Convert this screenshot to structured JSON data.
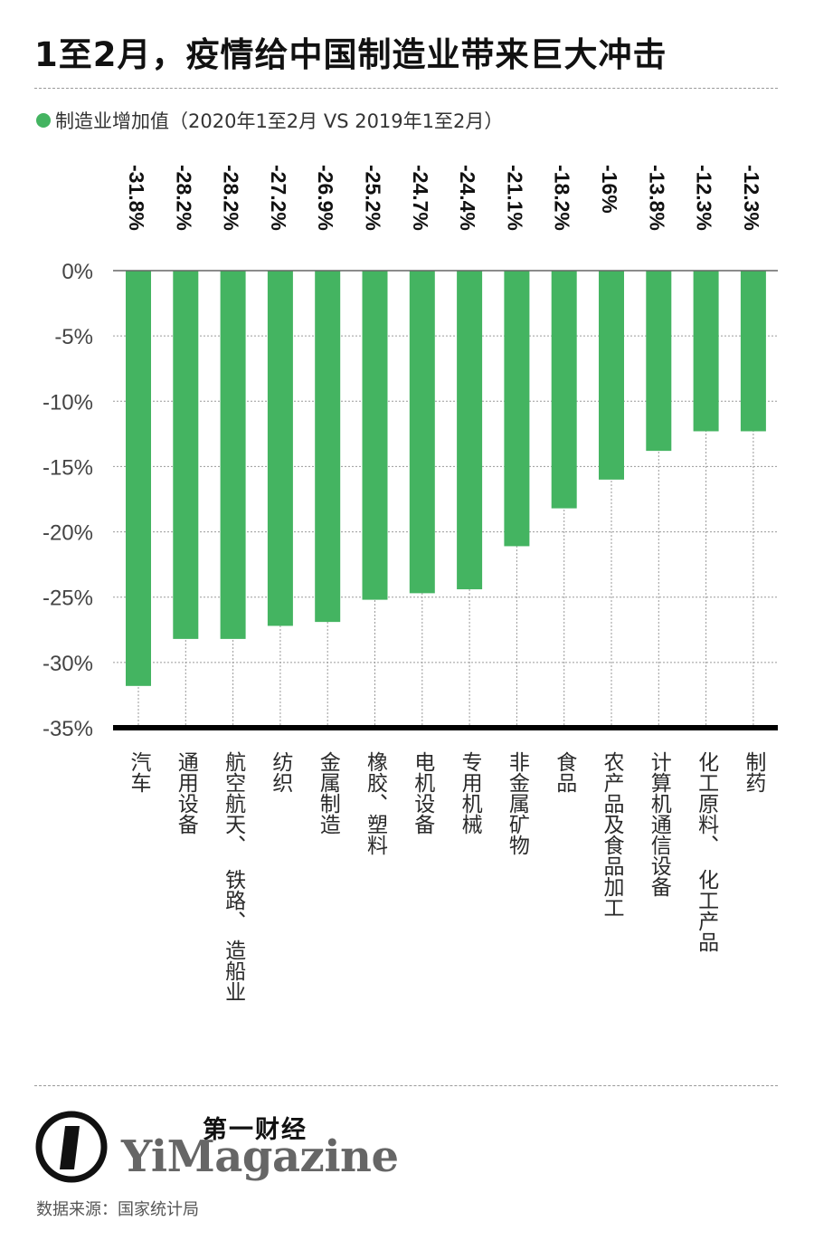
{
  "title": "1至2月，疫情给中国制造业带来巨大冲击",
  "legend": {
    "label": "制造业增加值（2020年1至2月 VS 2019年1至2月）"
  },
  "colors": {
    "bar": "#44b461",
    "axis": "#000000",
    "grid": "#9a9a9a"
  },
  "chart_data": {
    "type": "bar",
    "title": "1至2月，疫情给中国制造业带来巨大冲击",
    "series": [
      {
        "name": "制造业增加值（2020年1至2月 VS 2019年1至2月）",
        "values": [
          -31.8,
          -28.2,
          -28.2,
          -27.2,
          -26.9,
          -25.2,
          -24.7,
          -24.4,
          -21.1,
          -18.2,
          -16,
          -13.8,
          -12.3,
          -12.3
        ]
      }
    ],
    "categories": [
      "汽车",
      "通用设备",
      "航空航天、铁路、造船业",
      "纺织",
      "金属制造",
      "橡胶、塑料",
      "电机设备",
      "专用机械",
      "非金属矿物",
      "食品",
      "农产品及食品加工",
      "计算机通信设备",
      "化工原料、化工产品",
      "制药"
    ],
    "category_lines": [
      [
        "汽车"
      ],
      [
        "通用设备"
      ],
      [
        "航空航天、",
        "铁路、",
        "造船业"
      ],
      [
        "纺织"
      ],
      [
        "金属制造"
      ],
      [
        "橡胶、塑料"
      ],
      [
        "电机设备"
      ],
      [
        "专用机械"
      ],
      [
        "非金属矿物"
      ],
      [
        "食品"
      ],
      [
        "农产品及食品加工"
      ],
      [
        "计算机通信设备"
      ],
      [
        "化工原料、",
        "化工产品"
      ],
      [
        "制药"
      ]
    ],
    "data_labels": [
      "-31.8%",
      "-28.2%",
      "-28.2%",
      "-27.2%",
      "-26.9%",
      "-25.2%",
      "-24.7%",
      "-24.4%",
      "-21.1%",
      "-18.2%",
      "-16%",
      "-13.8%",
      "-12.3%",
      "-12.3%"
    ],
    "yticks": [
      "0%",
      "-5%",
      "-10%",
      "-15%",
      "-20%",
      "-25%",
      "-30%",
      "-35%"
    ],
    "ylim": [
      -35,
      0
    ],
    "grid": true,
    "legend_position": "top-left"
  },
  "logo": {
    "cn": "第一财经",
    "en": "YiMagazine"
  },
  "source": "数据来源：国家统计局"
}
